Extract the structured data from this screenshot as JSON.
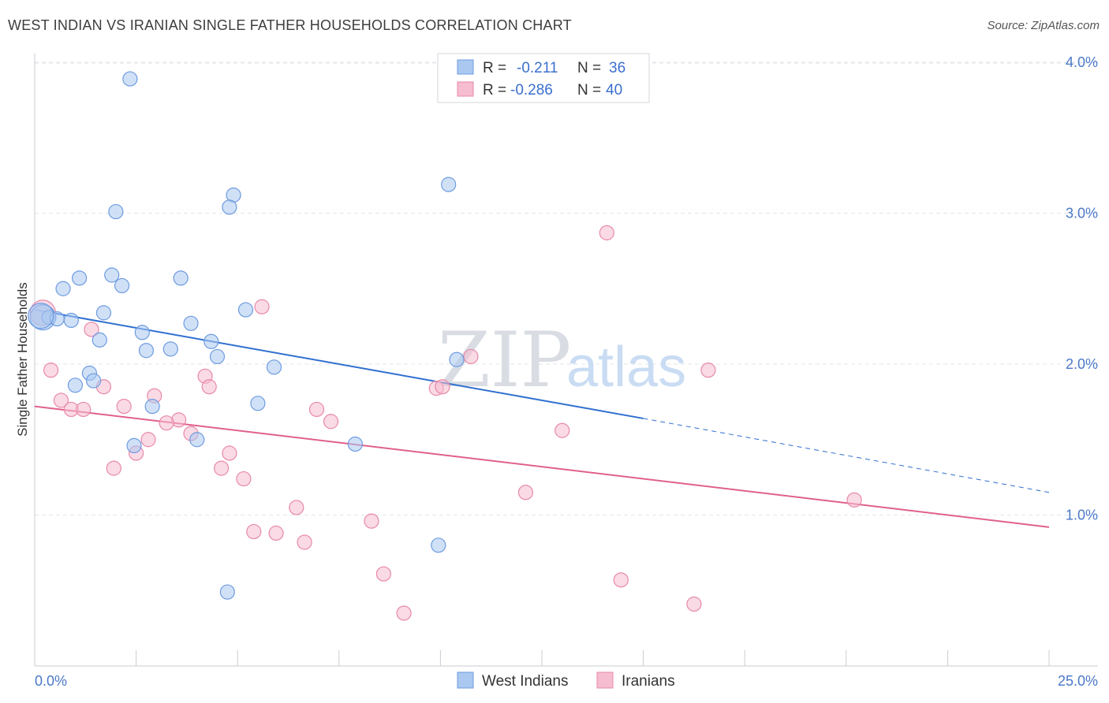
{
  "header": {
    "title": "WEST INDIAN VS IRANIAN SINGLE FATHER HOUSEHOLDS CORRELATION CHART",
    "source": "Source: ZipAtlas.com"
  },
  "watermark": {
    "zip": "ZIP",
    "atlas": "atlas"
  },
  "chart_data": {
    "type": "scatter",
    "title": "WEST INDIAN VS IRANIAN SINGLE FATHER HOUSEHOLDS CORRELATION CHART",
    "xlabel": "",
    "ylabel": "Single Father Households",
    "xlim": [
      0,
      25
    ],
    "ylim": [
      0,
      4.15
    ],
    "x_tick_labels": [
      "0.0%",
      "25.0%"
    ],
    "y_ticks": [
      1,
      2,
      3,
      4
    ],
    "y_tick_labels": [
      "1.0%",
      "2.0%",
      "3.0%",
      "4.0%"
    ],
    "grid": true,
    "legend": {
      "position": "top-center",
      "entries": [
        {
          "r_label": "R =",
          "r_value": "-0.211",
          "n_label": "N =",
          "n_value": "36"
        },
        {
          "r_label": "R =",
          "r_value": "-0.286",
          "n_label": "N =",
          "n_value": "40"
        }
      ]
    },
    "bottom_legend": [
      "West Indians",
      "Iranians"
    ],
    "colors": {
      "west_indians_fill": "#aac8f0",
      "west_indians_stroke": "#6e9be0",
      "west_indians_line": "#2f6fd0",
      "iranians_fill": "#f6bcd0",
      "iranians_stroke": "#e889a8",
      "iranians_line": "#e0608e",
      "tick": "#4a78c8",
      "grid": "#e3e6ea"
    },
    "series": [
      {
        "name": "West Indians",
        "r": -0.211,
        "n": 36,
        "trend": {
          "x0": 0,
          "y0": 2.36,
          "x1": 15,
          "y1": 1.64,
          "dashed_to_x": 25,
          "dashed_to_y": 1.15
        },
        "points": [
          {
            "x": 2.35,
            "y": 3.89
          },
          {
            "x": 10.2,
            "y": 3.19
          },
          {
            "x": 4.9,
            "y": 3.12
          },
          {
            "x": 4.8,
            "y": 3.04
          },
          {
            "x": 2.0,
            "y": 3.01
          },
          {
            "x": 1.9,
            "y": 2.59
          },
          {
            "x": 1.1,
            "y": 2.57
          },
          {
            "x": 3.6,
            "y": 2.57
          },
          {
            "x": 2.15,
            "y": 2.52
          },
          {
            "x": 0.7,
            "y": 2.5
          },
          {
            "x": 5.2,
            "y": 2.36
          },
          {
            "x": 1.7,
            "y": 2.34
          },
          {
            "x": 0.2,
            "y": 2.31
          },
          {
            "x": 0.35,
            "y": 2.31
          },
          {
            "x": 0.55,
            "y": 2.3
          },
          {
            "x": 0.9,
            "y": 2.29
          },
          {
            "x": 3.85,
            "y": 2.27
          },
          {
            "x": 2.65,
            "y": 2.21
          },
          {
            "x": 1.6,
            "y": 2.16
          },
          {
            "x": 4.35,
            "y": 2.15
          },
          {
            "x": 3.35,
            "y": 2.1
          },
          {
            "x": 2.75,
            "y": 2.09
          },
          {
            "x": 4.5,
            "y": 2.05
          },
          {
            "x": 10.4,
            "y": 2.03
          },
          {
            "x": 5.9,
            "y": 1.98
          },
          {
            "x": 1.35,
            "y": 1.94
          },
          {
            "x": 1.45,
            "y": 1.89
          },
          {
            "x": 1.0,
            "y": 1.86
          },
          {
            "x": 5.5,
            "y": 1.74
          },
          {
            "x": 2.9,
            "y": 1.72
          },
          {
            "x": 4.0,
            "y": 1.5
          },
          {
            "x": 2.45,
            "y": 1.46
          },
          {
            "x": 7.9,
            "y": 1.47
          },
          {
            "x": 9.95,
            "y": 0.8
          },
          {
            "x": 4.75,
            "y": 0.49
          },
          {
            "x": 0.15,
            "y": 2.32
          }
        ]
      },
      {
        "name": "Iranians",
        "r": -0.286,
        "n": 40,
        "trend": {
          "x0": 0,
          "y0": 1.72,
          "x1": 25,
          "y1": 0.92
        },
        "points": [
          {
            "x": 14.1,
            "y": 2.87
          },
          {
            "x": 5.6,
            "y": 2.38
          },
          {
            "x": 1.4,
            "y": 2.23
          },
          {
            "x": 10.75,
            "y": 2.05
          },
          {
            "x": 0.4,
            "y": 1.96
          },
          {
            "x": 16.6,
            "y": 1.96
          },
          {
            "x": 4.2,
            "y": 1.92
          },
          {
            "x": 1.7,
            "y": 1.85
          },
          {
            "x": 4.3,
            "y": 1.85
          },
          {
            "x": 9.9,
            "y": 1.84
          },
          {
            "x": 10.05,
            "y": 1.85
          },
          {
            "x": 2.95,
            "y": 1.79
          },
          {
            "x": 0.65,
            "y": 1.76
          },
          {
            "x": 2.2,
            "y": 1.72
          },
          {
            "x": 0.9,
            "y": 1.7
          },
          {
            "x": 1.2,
            "y": 1.7
          },
          {
            "x": 6.95,
            "y": 1.7
          },
          {
            "x": 3.55,
            "y": 1.63
          },
          {
            "x": 3.25,
            "y": 1.61
          },
          {
            "x": 7.3,
            "y": 1.62
          },
          {
            "x": 13.0,
            "y": 1.56
          },
          {
            "x": 3.85,
            "y": 1.54
          },
          {
            "x": 2.8,
            "y": 1.5
          },
          {
            "x": 2.5,
            "y": 1.41
          },
          {
            "x": 4.8,
            "y": 1.41
          },
          {
            "x": 1.95,
            "y": 1.31
          },
          {
            "x": 4.6,
            "y": 1.31
          },
          {
            "x": 5.15,
            "y": 1.24
          },
          {
            "x": 12.1,
            "y": 1.15
          },
          {
            "x": 20.2,
            "y": 1.1
          },
          {
            "x": 6.45,
            "y": 1.05
          },
          {
            "x": 8.3,
            "y": 0.96
          },
          {
            "x": 5.4,
            "y": 0.89
          },
          {
            "x": 5.95,
            "y": 0.88
          },
          {
            "x": 6.65,
            "y": 0.82
          },
          {
            "x": 8.6,
            "y": 0.61
          },
          {
            "x": 14.45,
            "y": 0.57
          },
          {
            "x": 16.25,
            "y": 0.41
          },
          {
            "x": 9.1,
            "y": 0.35
          },
          {
            "x": 0.2,
            "y": 2.34
          }
        ]
      }
    ]
  }
}
